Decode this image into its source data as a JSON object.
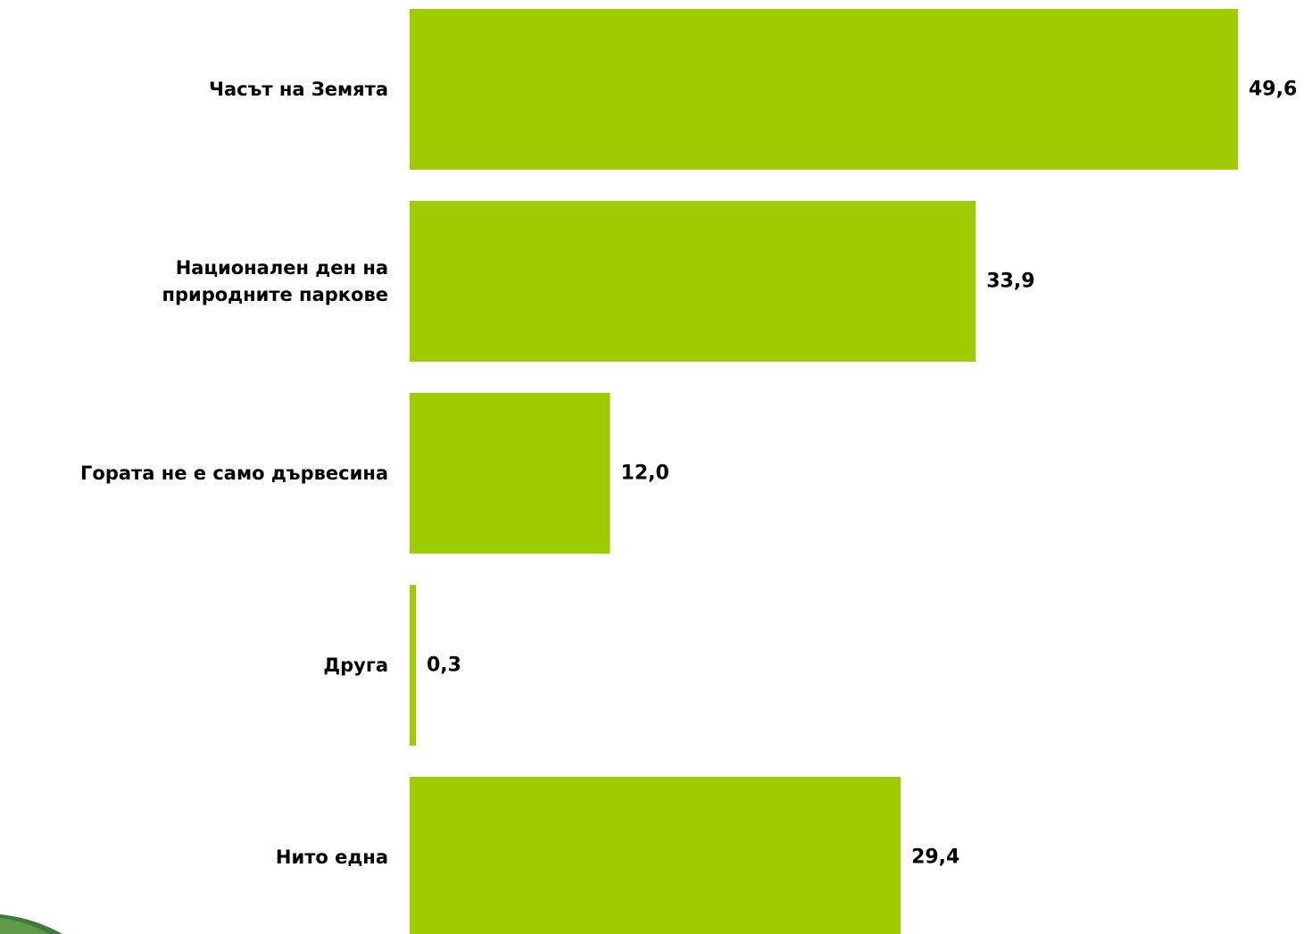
{
  "chart_data": {
    "type": "bar",
    "orientation": "horizontal",
    "categories": [
      [
        "Часът на Земята"
      ],
      [
        "Национален ден на",
        "природните паркове"
      ],
      [
        "Гората не е само дървесина"
      ],
      [
        "Друга"
      ],
      [
        "Нито една"
      ]
    ],
    "values": [
      49.6,
      33.9,
      12.0,
      0.3,
      29.4
    ],
    "value_labels": [
      "49,6",
      "33,9",
      "12,0",
      "0,3",
      "29,4"
    ],
    "xlim": [
      0,
      49.6
    ],
    "grid": false,
    "legend": "none",
    "bar_color": "#9ECC00",
    "text_color": "#000000"
  }
}
